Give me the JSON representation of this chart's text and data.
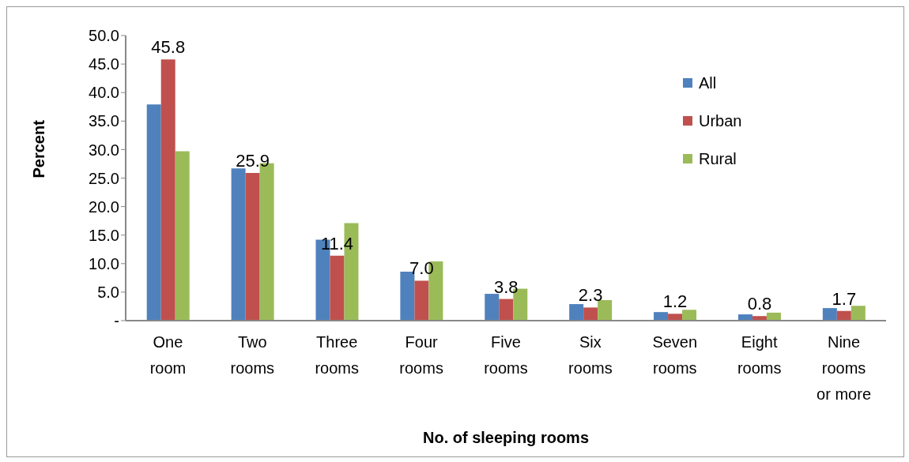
{
  "chart_data": {
    "type": "bar",
    "xlabel": "No. of sleeping rooms",
    "ylabel": "Percent",
    "categories": [
      "One room",
      "Two rooms",
      "Three rooms",
      "Four rooms",
      "Five rooms",
      "Six rooms",
      "Seven rooms",
      "Eight rooms",
      "Nine rooms or more"
    ],
    "series": [
      {
        "name": "All",
        "color": "#4f81bd",
        "values": [
          37.9,
          26.7,
          14.2,
          8.6,
          4.7,
          2.9,
          1.5,
          1.1,
          2.2
        ]
      },
      {
        "name": "Urban",
        "color": "#c0504d",
        "values": [
          45.8,
          25.9,
          11.4,
          7.0,
          3.8,
          2.3,
          1.2,
          0.8,
          1.7
        ],
        "value_labels": [
          "45.8",
          "25.9",
          "11.4",
          "7.0",
          "3.8",
          "2.3",
          "1.2",
          "0.8",
          "1.7"
        ]
      },
      {
        "name": "Rural",
        "color": "#9bbb59",
        "values": [
          29.7,
          27.6,
          17.1,
          10.4,
          5.6,
          3.6,
          1.9,
          1.4,
          2.6
        ]
      }
    ],
    "ylim": [
      0,
      50
    ],
    "yticks": [
      {
        "value": 0,
        "label": "-"
      },
      {
        "value": 5,
        "label": "5.0"
      },
      {
        "value": 10,
        "label": "10.0"
      },
      {
        "value": 15,
        "label": "15.0"
      },
      {
        "value": 20,
        "label": "20.0"
      },
      {
        "value": 25,
        "label": "25.0"
      },
      {
        "value": 30,
        "label": "30.0"
      },
      {
        "value": 35,
        "label": "35.0"
      },
      {
        "value": 40,
        "label": "40.0"
      },
      {
        "value": 45,
        "label": "45.0"
      },
      {
        "value": 50,
        "label": "50.0"
      }
    ],
    "grid": false,
    "legend": "top right"
  }
}
